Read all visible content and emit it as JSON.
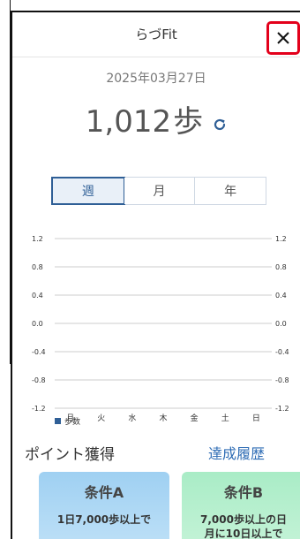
{
  "header": {
    "title": "らづFit",
    "close_label": "×"
  },
  "summary": {
    "date": "2025年03月27日",
    "steps": "1,012",
    "unit": "歩",
    "refresh_icon": "refresh-icon"
  },
  "period_tabs": [
    {
      "label": "週",
      "active": true
    },
    {
      "label": "月",
      "active": false
    },
    {
      "label": "年",
      "active": false
    }
  ],
  "chart_data": {
    "type": "bar",
    "categories": [
      "月",
      "火",
      "水",
      "木",
      "金",
      "土",
      "日"
    ],
    "series": [
      {
        "name": "歩数",
        "values": [
          0,
          0,
          0,
          0,
          0,
          0,
          0
        ],
        "color": "#2f5f96"
      }
    ],
    "ylim": [
      -1.2,
      1.2
    ],
    "yticks": [
      "1.2",
      "0.8",
      "0.4",
      "0.0",
      "-0.4",
      "-0.8",
      "-1.2"
    ],
    "grid": true,
    "legend": "bottom-left"
  },
  "points": {
    "title": "ポイント獲得",
    "history_link": "達成履歴"
  },
  "conditions": [
    {
      "title": "条件A",
      "desc_line1": "1日7,000歩以上で",
      "desc_line2": ""
    },
    {
      "title": "条件B",
      "desc_line1": "7,000歩以上の日",
      "desc_line2": "月に10日以上で"
    }
  ]
}
